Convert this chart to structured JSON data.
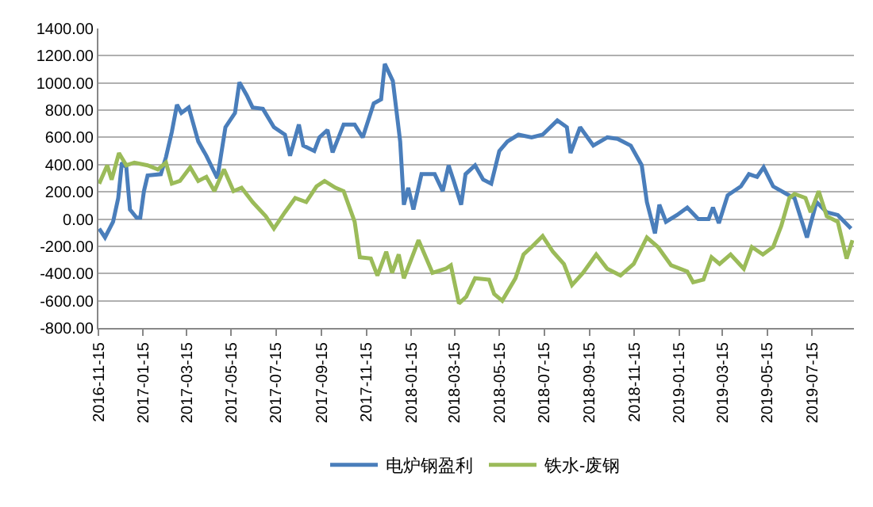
{
  "chart_data": {
    "type": "line",
    "xlim": [
      "2016-11-15",
      "2019-09-10"
    ],
    "xticks": [
      "2016-11-15",
      "2017-01-15",
      "2017-03-15",
      "2017-05-15",
      "2017-07-15",
      "2017-09-15",
      "2017-11-15",
      "2018-01-15",
      "2018-03-15",
      "2018-05-15",
      "2018-07-15",
      "2018-09-15",
      "2018-11-15",
      "2019-01-15",
      "2019-03-15",
      "2019-05-15",
      "2019-07-15"
    ],
    "ylim": [
      -800,
      1400
    ],
    "yticks": [
      {
        "value": -800,
        "label": "-800.00"
      },
      {
        "value": -600,
        "label": "-600.00"
      },
      {
        "value": -400,
        "label": "-400.00"
      },
      {
        "value": -200,
        "label": "-200.00"
      },
      {
        "value": 0,
        "label": "0.00"
      },
      {
        "value": 200,
        "label": "200.00"
      },
      {
        "value": 400,
        "label": "400.00"
      },
      {
        "value": 600,
        "label": "600.00"
      },
      {
        "value": 800,
        "label": "800.00"
      },
      {
        "value": 1000,
        "label": "1000.00"
      },
      {
        "value": 1200,
        "label": "1200.00"
      },
      {
        "value": 1400,
        "label": "1400.00"
      }
    ],
    "grid": "y",
    "legend": "bottom",
    "marker": "none",
    "line_style": "solid",
    "series": [
      {
        "name": "电炉钢盈利",
        "color": "#4a7ebb",
        "x": [
          "2016-11-16",
          "2016-11-24",
          "2016-12-05",
          "2016-12-12",
          "2016-12-17",
          "2016-12-23",
          "2016-12-28",
          "2017-01-06",
          "2017-01-11",
          "2017-01-16",
          "2017-01-21",
          "2017-02-08",
          "2017-02-15",
          "2017-02-23",
          "2017-03-02",
          "2017-03-08",
          "2017-03-18",
          "2017-03-31",
          "2017-04-11",
          "2017-04-26",
          "2017-05-07",
          "2017-05-20",
          "2017-05-26",
          "2017-06-05",
          "2017-06-13",
          "2017-06-27",
          "2017-07-12",
          "2017-07-27",
          "2017-08-03",
          "2017-08-15",
          "2017-08-21",
          "2017-09-05",
          "2017-09-12",
          "2017-09-23",
          "2017-09-30",
          "2017-10-15",
          "2017-10-30",
          "2017-11-10",
          "2017-11-25",
          "2017-12-05",
          "2017-12-10",
          "2017-12-21",
          "2017-12-31",
          "2018-01-05",
          "2018-01-11",
          "2018-01-18",
          "2018-01-29",
          "2018-02-16",
          "2018-02-27",
          "2018-03-07",
          "2018-03-14",
          "2018-03-24",
          "2018-03-30",
          "2018-04-12",
          "2018-04-23",
          "2018-05-04",
          "2018-05-15",
          "2018-05-26",
          "2018-06-10",
          "2018-06-28",
          "2018-07-13",
          "2018-08-02",
          "2018-08-15",
          "2018-08-20",
          "2018-09-02",
          "2018-09-20",
          "2018-10-09",
          "2018-10-23",
          "2018-11-10",
          "2018-11-25",
          "2018-12-02",
          "2018-12-13",
          "2018-12-19",
          "2018-12-28",
          "2019-01-12",
          "2019-01-26",
          "2019-02-10",
          "2019-02-24",
          "2019-03-02",
          "2019-03-10",
          "2019-03-22",
          "2019-04-09",
          "2019-04-20",
          "2019-05-01",
          "2019-05-10",
          "2019-05-23",
          "2019-06-10",
          "2019-06-21",
          "2019-07-08",
          "2019-07-21",
          "2019-08-04",
          "2019-08-19",
          "2019-09-06"
        ],
        "values": [
          -70,
          -135,
          -20,
          155,
          415,
          380,
          70,
          10,
          10,
          205,
          320,
          330,
          455,
          640,
          840,
          780,
          820,
          570,
          465,
          300,
          675,
          780,
          1005,
          910,
          820,
          810,
          675,
          620,
          465,
          695,
          540,
          500,
          600,
          655,
          490,
          695,
          695,
          600,
          850,
          880,
          1140,
          1015,
          570,
          105,
          230,
          70,
          330,
          330,
          205,
          395,
          280,
          105,
          330,
          395,
          290,
          260,
          500,
          570,
          620,
          600,
          620,
          725,
          675,
          485,
          675,
          540,
          600,
          590,
          540,
          395,
          125,
          -105,
          105,
          -20,
          30,
          85,
          0,
          0,
          85,
          -30,
          175,
          240,
          330,
          310,
          380,
          240,
          185,
          155,
          -135,
          125,
          50,
          30,
          -70
        ]
      },
      {
        "name": "铁水-废钢",
        "color": "#9bbb59",
        "x": [
          "2016-11-16",
          "2016-11-27",
          "2016-12-03",
          "2016-12-13",
          "2016-12-23",
          "2017-01-03",
          "2017-01-21",
          "2017-02-04",
          "2017-02-15",
          "2017-02-23",
          "2017-03-06",
          "2017-03-20",
          "2017-03-31",
          "2017-04-11",
          "2017-04-22",
          "2017-05-05",
          "2017-05-18",
          "2017-05-29",
          "2017-06-13",
          "2017-07-01",
          "2017-07-12",
          "2017-07-27",
          "2017-08-10",
          "2017-08-25",
          "2017-09-08",
          "2017-09-19",
          "2017-10-04",
          "2017-10-15",
          "2017-10-30",
          "2017-11-06",
          "2017-11-21",
          "2017-11-30",
          "2017-12-12",
          "2017-12-20",
          "2017-12-29",
          "2018-01-05",
          "2018-01-14",
          "2018-01-25",
          "2018-02-13",
          "2018-03-03",
          "2018-03-10",
          "2018-03-21",
          "2018-03-31",
          "2018-04-12",
          "2018-05-01",
          "2018-05-08",
          "2018-05-19",
          "2018-06-06",
          "2018-06-17",
          "2018-06-28",
          "2018-07-13",
          "2018-07-27",
          "2018-08-11",
          "2018-08-22",
          "2018-09-06",
          "2018-09-24",
          "2018-10-09",
          "2018-10-27",
          "2018-11-14",
          "2018-12-02",
          "2018-12-17",
          "2019-01-04",
          "2019-01-26",
          "2019-02-03",
          "2019-02-17",
          "2019-02-28",
          "2019-03-11",
          "2019-03-26",
          "2019-04-13",
          "2019-04-24",
          "2019-05-09",
          "2019-05-23",
          "2019-06-03",
          "2019-06-14",
          "2019-06-21",
          "2019-07-06",
          "2019-07-13",
          "2019-07-24",
          "2019-08-04",
          "2019-08-19",
          "2019-08-31",
          "2019-09-08"
        ],
        "values": [
          260,
          395,
          290,
          485,
          395,
          415,
          395,
          365,
          415,
          260,
          280,
          380,
          280,
          310,
          205,
          365,
          205,
          230,
          125,
          20,
          -70,
          50,
          155,
          125,
          240,
          280,
          230,
          205,
          -20,
          -280,
          -290,
          -415,
          -240,
          -395,
          -260,
          -435,
          -310,
          -155,
          -395,
          -365,
          -340,
          -620,
          -570,
          -435,
          -445,
          -550,
          -600,
          -435,
          -260,
          -205,
          -125,
          -240,
          -330,
          -485,
          -395,
          -260,
          -365,
          -415,
          -330,
          -135,
          -205,
          -340,
          -385,
          -465,
          -445,
          -280,
          -330,
          -260,
          -365,
          -205,
          -260,
          -205,
          -50,
          155,
          185,
          155,
          50,
          205,
          20,
          -20,
          -290,
          -155
        ]
      }
    ]
  }
}
